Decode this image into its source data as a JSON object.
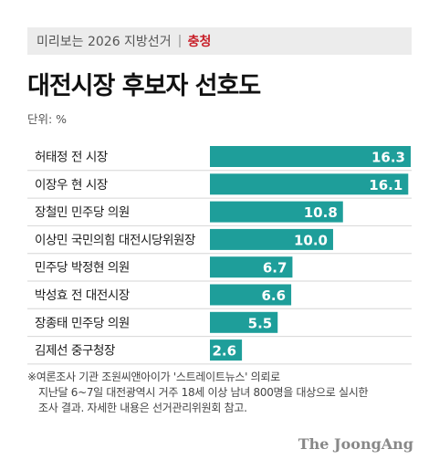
{
  "banner": {
    "series": "미리보는 2026 지방선거",
    "region": "충청"
  },
  "title": "대전시장 후보자 선호도",
  "unit": "단위: %",
  "chart_data": {
    "type": "bar",
    "orientation": "horizontal",
    "title": "대전시장 후보자 선호도",
    "unit": "%",
    "categories": [
      "허태정 전 시장",
      "이장우 현 시장",
      "장철민 민주당 의원",
      "이상민 국민의힘 대전시당위원장",
      "민주당 박정현 의원",
      "박성효 전 대전시장",
      "장종태 민주당 의원",
      "김제선 중구청장"
    ],
    "values": [
      16.3,
      16.1,
      10.8,
      10.0,
      6.7,
      6.6,
      5.5,
      2.6
    ],
    "value_labels": [
      "16.3",
      "16.1",
      "10.8",
      "10.0",
      "6.7",
      "6.6",
      "5.5",
      "2.6"
    ],
    "xlim": [
      0,
      16.3
    ],
    "bar_color": "#1e9e9a",
    "grid": false
  },
  "note": {
    "line1": "※여론조사 기관 조원씨앤아이가 '스트레이트뉴스' 의뢰로",
    "line2": "지난달 6~7일 대전광역시 거주 18세 이상 남녀 800명을 대상으로 실시한",
    "line3": "조사 결과. 자세한 내용은 선거관리위원회 참고."
  },
  "logo": "The JoongAng"
}
